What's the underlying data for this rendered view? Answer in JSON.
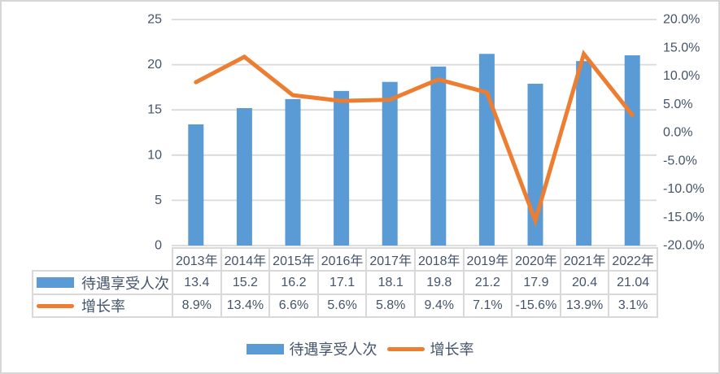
{
  "colors": {
    "bar": "#5B9BD5",
    "line": "#ED7D31",
    "text": "#44546A",
    "grid": "#D9D9D9",
    "table_border": "#D9D9D9"
  },
  "chart_data": {
    "type": "combo-bar-line",
    "title": "",
    "categories": [
      "2013年",
      "2014年",
      "2015年",
      "2016年",
      "2017年",
      "2018年",
      "2019年",
      "2020年",
      "2021年",
      "2022年"
    ],
    "series": [
      {
        "name": "待遇享受人次",
        "type": "bar",
        "axis": "left",
        "values": [
          13.4,
          15.2,
          16.2,
          17.1,
          18.1,
          19.8,
          21.2,
          17.9,
          20.4,
          21.04
        ],
        "display": [
          "13.4",
          "15.2",
          "16.2",
          "17.1",
          "18.1",
          "19.8",
          "21.2",
          "17.9",
          "20.4",
          "21.04"
        ]
      },
      {
        "name": "增长率",
        "type": "line",
        "axis": "right",
        "values": [
          8.9,
          13.4,
          6.6,
          5.6,
          5.8,
          9.4,
          7.1,
          -15.6,
          13.9,
          3.1
        ],
        "display": [
          "8.9%",
          "13.4%",
          "6.6%",
          "5.6%",
          "5.8%",
          "9.4%",
          "7.1%",
          "-15.6%",
          "13.9%",
          "3.1%"
        ]
      }
    ],
    "left_axis": {
      "min": 0,
      "max": 25,
      "ticks": [
        0,
        5,
        10,
        15,
        20,
        25
      ],
      "labels": [
        "0",
        "5",
        "10",
        "15",
        "20",
        "25"
      ]
    },
    "right_axis": {
      "min": -20,
      "max": 20,
      "ticks": [
        -20,
        -15,
        -10,
        -5,
        0,
        5,
        10,
        15,
        20
      ],
      "labels": [
        "-20.0%",
        "-15.0%",
        "-10.0%",
        "-5.0%",
        "0.0%",
        "5.0%",
        "10.0%",
        "15.0%",
        "20.0%"
      ]
    },
    "grid": true,
    "legend_position": "bottom",
    "data_table_shown": true
  }
}
